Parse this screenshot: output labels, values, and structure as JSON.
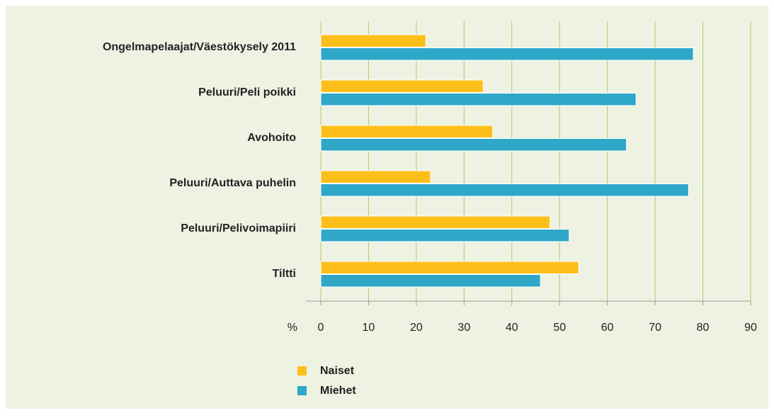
{
  "chart_data": {
    "type": "hbar",
    "categories": [
      "Ongelmapelaajat/Väestökysely 2011",
      "Peluuri/Peli poikki",
      "Avohoito",
      "Peluuri/Auttava puhelin",
      "Peluuri/Pelivoimapiiri",
      "Tiltti"
    ],
    "series": [
      {
        "name": "Naiset",
        "color": "#fcbf1a",
        "values": [
          22,
          34,
          36,
          23,
          48,
          54
        ]
      },
      {
        "name": "Miehet",
        "color": "#2ea7c9",
        "values": [
          78,
          66,
          64,
          77,
          52,
          46
        ]
      }
    ],
    "xlabel": "%",
    "xlim": [
      0,
      90
    ],
    "xticks": [
      0,
      10,
      20,
      30,
      40,
      50,
      60,
      70,
      80,
      90
    ],
    "grid": true
  }
}
